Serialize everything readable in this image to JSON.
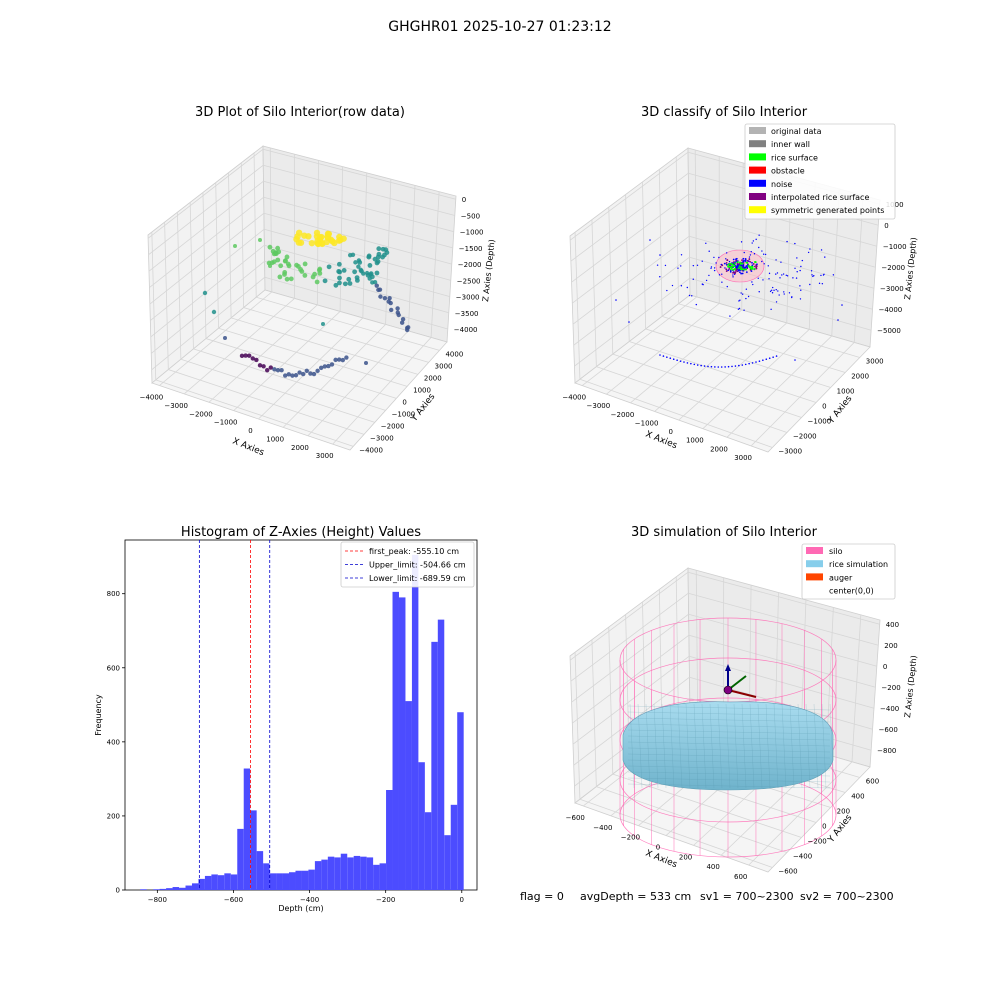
{
  "figure": {
    "suptitle": "GHGHR01 2025-10-27 01:23:12",
    "status_line": {
      "flag": "flag = 0",
      "avg_depth": "avgDepth = 533 cm",
      "sv1": "sv1 = 700~2300",
      "sv2": "sv2 = 700~2300"
    }
  },
  "colors": {
    "hist_bar": "#4c4cff",
    "peak_line": "#ff0000",
    "limit_line": "#0000cc",
    "viridis_low": "#440154",
    "viridis_mid": "#21918c",
    "viridis_high": "#fde725",
    "silo": "#ff69b4",
    "rice_simulation": "#87ceeb",
    "auger": "#ff4500"
  },
  "chart_data": [
    {
      "type": "scatter",
      "projection": "3d",
      "title": "3D Plot of Silo Interior(row data)",
      "xlabel": "X Axies",
      "ylabel": "Y Axies",
      "zlabel": "Z Axies (Depth)",
      "xticks": [
        "−4000",
        "−3000",
        "−2000",
        "−1000",
        "0",
        "1000",
        "2000",
        "3000"
      ],
      "yticks": [
        "−4000",
        "−3000",
        "−2000",
        "−1000",
        "0",
        "1000",
        "2000",
        "3000",
        "4000"
      ],
      "zticks": [
        "0",
        "−500",
        "−1000",
        "−1500",
        "−2000",
        "−2500",
        "−3000",
        "−3500",
        "−4000"
      ],
      "colormap": "viridis",
      "grid": true
    },
    {
      "type": "scatter",
      "projection": "3d",
      "title": "3D classify of Silo Interior",
      "xlabel": "X Axies",
      "ylabel": "Y Axies",
      "zlabel": "Z Axies (Depth)",
      "xticks": [
        "−4000",
        "−3000",
        "−2000",
        "−1000",
        "0",
        "1000",
        "2000",
        "3000"
      ],
      "yticks": [
        "−3000",
        "−2000",
        "−1000",
        "0",
        "1000",
        "2000",
        "3000"
      ],
      "zticks": [
        "1000",
        "0",
        "−1000",
        "−2000",
        "−3000",
        "−4000",
        "−5000"
      ],
      "legend_position": "top-right",
      "legend": [
        {
          "label": "original data",
          "color": "#b3b3b3"
        },
        {
          "label": "inner wall",
          "color": "#808080"
        },
        {
          "label": "rice surface",
          "color": "#00ff00"
        },
        {
          "label": "obstacle",
          "color": "#ff0000"
        },
        {
          "label": "noise",
          "color": "#0000ff"
        },
        {
          "label": "interpolated rice surface",
          "color": "#800080"
        },
        {
          "label": "symmetric generated points",
          "color": "#ffff00"
        }
      ],
      "grid": true
    },
    {
      "type": "bar",
      "title": "Histogram of Z-Axies (Height) Values",
      "xlabel": "Depth (cm)",
      "ylabel": "Frequency",
      "xlim": [
        -885,
        40
      ],
      "ylim": [
        0,
        945
      ],
      "xticks": [
        -800,
        -600,
        -400,
        -200,
        0
      ],
      "yticks": [
        0,
        200,
        400,
        600,
        800
      ],
      "bin_start": -845,
      "bin_width": 17,
      "counts": [
        2,
        0,
        2,
        3,
        5,
        8,
        6,
        12,
        18,
        30,
        38,
        42,
        40,
        45,
        42,
        165,
        328,
        215,
        105,
        72,
        45,
        45,
        45,
        48,
        52,
        52,
        55,
        78,
        82,
        90,
        88,
        98,
        88,
        92,
        90,
        88,
        68,
        72,
        270,
        805,
        790,
        510,
        905,
        345,
        210,
        670,
        730,
        148,
        230,
        480
      ],
      "vlines": [
        {
          "label": "first_peak: -555.10 cm",
          "x": -555.1,
          "color": "#ff0000"
        },
        {
          "label": "Upper_limit: -504.66 cm",
          "x": -504.66,
          "color": "#0000cc"
        },
        {
          "label": "Lower_limit: -689.59 cm",
          "x": -689.59,
          "color": "#0000cc"
        }
      ],
      "legend_position": "top-right",
      "grid": false
    },
    {
      "type": "scatter",
      "projection": "3d",
      "title": "3D simulation of Silo Interior",
      "xlabel": "X Axies",
      "ylabel": "Y Axies",
      "zlabel": "Z Axies (Depth)",
      "xticks": [
        "−600",
        "−400",
        "−200",
        "0",
        "200",
        "400",
        "600"
      ],
      "yticks": [
        "−600",
        "−400",
        "−200",
        "0",
        "200",
        "400",
        "600"
      ],
      "zticks": [
        "400",
        "200",
        "0",
        "−200",
        "−400",
        "−600",
        "−800"
      ],
      "legend_position": "top-right",
      "legend": [
        {
          "label": "silo",
          "color": "#ff69b4"
        },
        {
          "label": "rice simulation",
          "color": "#87ceeb"
        },
        {
          "label": "auger",
          "color": "#ff4500"
        },
        {
          "label": "center(0,0)",
          "color": ""
        }
      ],
      "grid": true
    }
  ]
}
